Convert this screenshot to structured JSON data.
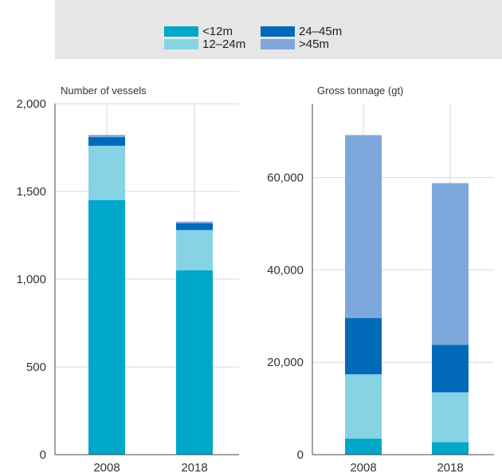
{
  "legend": {
    "items": [
      {
        "label": "<12m",
        "color": "#00a7c8"
      },
      {
        "label": "12–24m",
        "color": "#86d3e6"
      },
      {
        "label": "24–45m",
        "color": "#006ab9"
      },
      {
        "label": ">45m",
        "color": "#7ea8dc"
      }
    ]
  },
  "chart_data": [
    {
      "type": "bar",
      "stacked": true,
      "title": "Number of vessels",
      "categories": [
        "2008",
        "2018"
      ],
      "ylim": [
        0,
        2000
      ],
      "yticks": [
        0,
        500,
        1000,
        1500,
        2000
      ],
      "ytick_labels": [
        "0",
        "500",
        "1,000",
        "1,500",
        "2,000"
      ],
      "grid": true,
      "series": [
        {
          "name": "<12m",
          "values": [
            1450,
            1050
          ]
        },
        {
          "name": "12–24m",
          "values": [
            310,
            230
          ]
        },
        {
          "name": "24–45m",
          "values": [
            50,
            38
          ]
        },
        {
          "name": ">45m",
          "values": [
            12,
            10
          ]
        }
      ]
    },
    {
      "type": "bar",
      "stacked": true,
      "title": "Gross tonnage (gt)",
      "categories": [
        "2008",
        "2018"
      ],
      "ylim": [
        0,
        76000
      ],
      "yticks": [
        0,
        20000,
        40000,
        60000
      ],
      "ytick_labels": [
        "0",
        "20,000",
        "40,000",
        "60,000"
      ],
      "grid": true,
      "series": [
        {
          "name": "<12m",
          "values": [
            3500,
            2700
          ]
        },
        {
          "name": "12–24m",
          "values": [
            13900,
            10800
          ]
        },
        {
          "name": "24–45m",
          "values": [
            12200,
            10300
          ]
        },
        {
          "name": ">45m",
          "values": [
            39600,
            35000
          ]
        }
      ]
    }
  ]
}
